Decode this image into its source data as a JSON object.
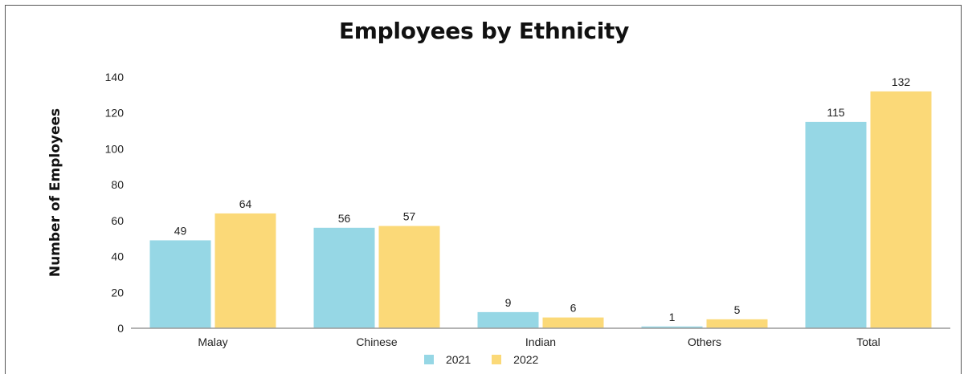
{
  "chart_data": {
    "type": "bar",
    "title": "Employees by Ethnicity",
    "xlabel": "",
    "ylabel": "Number of Employees",
    "categories": [
      "Malay",
      "Chinese",
      "Indian",
      "Others",
      "Total"
    ],
    "series": [
      {
        "name": "2021",
        "values": [
          49,
          56,
          9,
          1,
          115
        ],
        "color": "#96d7e5"
      },
      {
        "name": "2022",
        "values": [
          64,
          57,
          6,
          5,
          132
        ],
        "color": "#fbd978"
      }
    ],
    "ylim": [
      0,
      140
    ],
    "yticks": [
      0,
      20,
      40,
      60,
      80,
      100,
      120,
      140
    ],
    "grid": false,
    "legend_position": "bottom"
  }
}
